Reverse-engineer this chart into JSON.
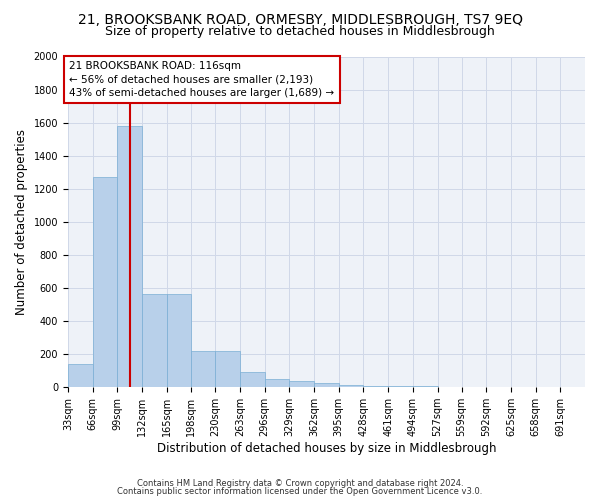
{
  "title": "21, BROOKSBANK ROAD, ORMESBY, MIDDLESBROUGH, TS7 9EQ",
  "subtitle": "Size of property relative to detached houses in Middlesbrough",
  "xlabel": "Distribution of detached houses by size in Middlesbrough",
  "ylabel": "Number of detached properties",
  "footnote1": "Contains HM Land Registry data © Crown copyright and database right 2024.",
  "footnote2": "Contains public sector information licensed under the Open Government Licence v3.0.",
  "bar_edges": [
    33,
    66,
    99,
    132,
    165,
    198,
    230,
    263,
    296,
    329,
    362,
    395,
    428,
    461,
    494,
    527,
    559,
    592,
    625,
    658,
    691
  ],
  "bar_heights": [
    140,
    1270,
    1580,
    565,
    565,
    220,
    220,
    95,
    50,
    40,
    25,
    15,
    5,
    5,
    5,
    3,
    2,
    2,
    1,
    1
  ],
  "bar_color": "#b8d0ea",
  "bar_edgecolor": "#7aaed4",
  "grid_color": "#d0d8e8",
  "vline_x": 116,
  "vline_color": "#cc0000",
  "annotation_line1": "21 BROOKSBANK ROAD: 116sqm",
  "annotation_line2": "← 56% of detached houses are smaller (2,193)",
  "annotation_line3": "43% of semi-detached houses are larger (1,689) →",
  "annotation_box_color": "#cc0000",
  "ylim": [
    0,
    2000
  ],
  "yticks": [
    0,
    200,
    400,
    600,
    800,
    1000,
    1200,
    1400,
    1600,
    1800,
    2000
  ],
  "title_fontsize": 10,
  "subtitle_fontsize": 9,
  "axis_label_fontsize": 8.5,
  "tick_fontsize": 7,
  "annotation_fontsize": 7.5,
  "background_color": "#ffffff",
  "plot_bg_color": "#eef2f8"
}
